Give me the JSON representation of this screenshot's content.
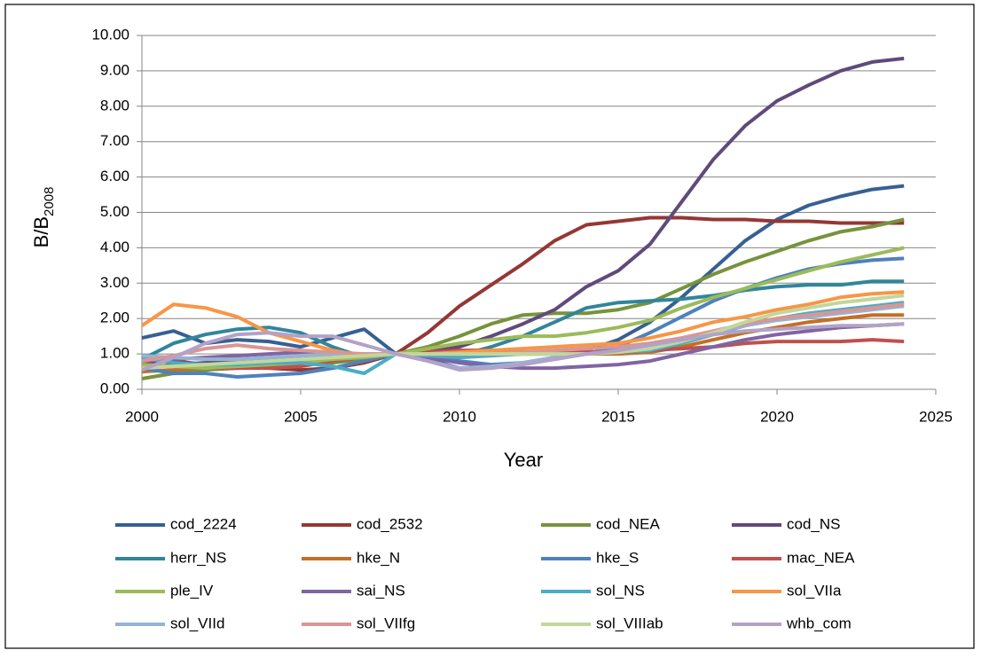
{
  "chart_data": {
    "type": "line",
    "xlabel": "Year",
    "ylabel": "B/B",
    "ylabel_sub": "2008",
    "x": [
      2000,
      2001,
      2002,
      2003,
      2004,
      2005,
      2006,
      2007,
      2008,
      2009,
      2010,
      2011,
      2012,
      2013,
      2014,
      2015,
      2016,
      2017,
      2018,
      2019,
      2020,
      2021,
      2022,
      2023,
      2024
    ],
    "xlim": [
      2000,
      2025
    ],
    "xticks": [
      2000,
      2005,
      2010,
      2015,
      2020,
      2025
    ],
    "ylim": [
      0,
      10
    ],
    "yticks": [
      {
        "value": 0,
        "label": "0.00"
      },
      {
        "value": 1,
        "label": "1.00"
      },
      {
        "value": 2,
        "label": "2.00"
      },
      {
        "value": 3,
        "label": "3.00"
      },
      {
        "value": 4,
        "label": "4.00"
      },
      {
        "value": 5,
        "label": "5.00"
      },
      {
        "value": 6,
        "label": "6.00"
      },
      {
        "value": 7,
        "label": "7.00"
      },
      {
        "value": 8,
        "label": "8.00"
      },
      {
        "value": 9,
        "label": "9.00"
      },
      {
        "value": 10,
        "label": "10.00"
      }
    ],
    "grid": true,
    "legend": "bottom",
    "series": [
      {
        "name": "cod_2224",
        "color": "#376092",
        "values": [
          1.45,
          1.65,
          1.3,
          1.4,
          1.35,
          1.2,
          1.45,
          1.7,
          1.0,
          0.85,
          0.6,
          0.65,
          0.75,
          0.9,
          1.1,
          1.4,
          1.9,
          2.6,
          3.4,
          4.2,
          4.8,
          5.2,
          5.45,
          5.65,
          5.75
        ]
      },
      {
        "name": "cod_2532",
        "color": "#953735",
        "values": [
          0.75,
          0.8,
          0.7,
          0.65,
          0.6,
          0.55,
          0.6,
          0.75,
          1.0,
          1.6,
          2.35,
          2.95,
          3.55,
          4.2,
          4.65,
          4.75,
          4.85,
          4.85,
          4.8,
          4.8,
          4.75,
          4.75,
          4.7,
          4.7,
          4.7
        ]
      },
      {
        "name": "cod_NEA",
        "color": "#77933c",
        "values": [
          0.3,
          0.45,
          0.55,
          0.6,
          0.65,
          0.7,
          0.75,
          0.85,
          1.0,
          1.2,
          1.5,
          1.85,
          2.1,
          2.15,
          2.15,
          2.25,
          2.45,
          2.85,
          3.25,
          3.6,
          3.9,
          4.2,
          4.45,
          4.6,
          4.8
        ]
      },
      {
        "name": "cod_NS",
        "color": "#604a7b",
        "values": [
          0.6,
          0.7,
          0.75,
          0.8,
          0.85,
          0.9,
          0.95,
          0.95,
          1.0,
          1.05,
          1.2,
          1.5,
          1.85,
          2.25,
          2.9,
          3.35,
          4.1,
          5.3,
          6.5,
          7.45,
          8.15,
          8.6,
          9.0,
          9.25,
          9.35
        ]
      },
      {
        "name": "herr_NS",
        "color": "#31859c",
        "values": [
          0.85,
          1.3,
          1.55,
          1.7,
          1.75,
          1.6,
          1.2,
          0.9,
          1.0,
          1.0,
          0.95,
          1.2,
          1.5,
          1.9,
          2.3,
          2.45,
          2.5,
          2.55,
          2.65,
          2.8,
          2.9,
          2.95,
          2.95,
          3.05,
          3.05
        ]
      },
      {
        "name": "hke_N",
        "color": "#c46f26",
        "values": [
          0.5,
          0.55,
          0.6,
          0.65,
          0.7,
          0.75,
          0.85,
          0.95,
          1.0,
          1.0,
          1.0,
          1.0,
          1.0,
          1.0,
          1.0,
          1.0,
          1.05,
          1.2,
          1.4,
          1.6,
          1.75,
          1.9,
          2.0,
          2.1,
          2.1
        ]
      },
      {
        "name": "hke_S",
        "color": "#4f81bd",
        "values": [
          0.6,
          0.45,
          0.45,
          0.35,
          0.4,
          0.45,
          0.6,
          0.8,
          1.0,
          0.95,
          0.8,
          0.7,
          0.75,
          0.85,
          1.0,
          1.2,
          1.6,
          2.05,
          2.5,
          2.85,
          3.15,
          3.4,
          3.55,
          3.65,
          3.7
        ]
      },
      {
        "name": "mac_NEA",
        "color": "#c0504d",
        "values": [
          0.7,
          0.65,
          0.6,
          0.6,
          0.6,
          0.65,
          0.8,
          0.9,
          1.0,
          1.05,
          1.1,
          1.1,
          1.05,
          1.05,
          1.05,
          1.05,
          1.1,
          1.15,
          1.2,
          1.3,
          1.35,
          1.35,
          1.35,
          1.4,
          1.35
        ]
      },
      {
        "name": "ple_IV",
        "color": "#9bbb59",
        "values": [
          0.7,
          0.65,
          0.6,
          0.65,
          0.7,
          0.75,
          0.85,
          0.9,
          1.0,
          1.15,
          1.3,
          1.4,
          1.5,
          1.5,
          1.6,
          1.75,
          1.95,
          2.3,
          2.6,
          2.85,
          3.1,
          3.35,
          3.6,
          3.8,
          4.0
        ]
      },
      {
        "name": "sai_NS",
        "color": "#8064a2",
        "values": [
          0.8,
          0.85,
          0.9,
          0.95,
          1.0,
          1.05,
          1.0,
          0.95,
          1.0,
          0.9,
          0.75,
          0.65,
          0.6,
          0.6,
          0.65,
          0.7,
          0.8,
          1.0,
          1.2,
          1.4,
          1.55,
          1.65,
          1.75,
          1.8,
          1.85
        ]
      },
      {
        "name": "sol_NS",
        "color": "#4bacc6",
        "values": [
          0.9,
          0.75,
          0.7,
          0.7,
          0.75,
          0.75,
          0.65,
          0.45,
          1.0,
          0.95,
          0.9,
          0.95,
          1.0,
          1.0,
          1.0,
          1.05,
          1.1,
          1.3,
          1.55,
          1.8,
          2.0,
          2.15,
          2.25,
          2.35,
          2.45
        ]
      },
      {
        "name": "sol_VIIa",
        "color": "#f79646",
        "values": [
          1.8,
          2.4,
          2.3,
          2.05,
          1.6,
          1.35,
          1.1,
          0.95,
          1.0,
          1.0,
          1.05,
          1.1,
          1.15,
          1.2,
          1.25,
          1.3,
          1.45,
          1.65,
          1.9,
          2.05,
          2.25,
          2.4,
          2.6,
          2.7,
          2.75
        ]
      },
      {
        "name": "sol_VIId",
        "color": "#95b3d7",
        "values": [
          0.95,
          0.9,
          0.85,
          0.85,
          0.9,
          0.95,
          1.0,
          1.0,
          1.0,
          0.8,
          0.6,
          0.65,
          0.75,
          0.9,
          1.0,
          1.05,
          1.15,
          1.35,
          1.6,
          1.8,
          1.95,
          2.05,
          2.15,
          2.25,
          2.35
        ]
      },
      {
        "name": "sol_VIIfg",
        "color": "#d99694",
        "values": [
          0.8,
          0.95,
          1.15,
          1.25,
          1.15,
          1.1,
          1.05,
          1.0,
          1.0,
          1.0,
          1.0,
          1.0,
          1.05,
          1.1,
          1.15,
          1.2,
          1.3,
          1.45,
          1.65,
          1.85,
          2.0,
          2.1,
          2.2,
          2.3,
          2.4
        ]
      },
      {
        "name": "sol_VIIIab",
        "color": "#c3d69b",
        "values": [
          0.6,
          0.65,
          0.7,
          0.75,
          0.8,
          0.85,
          0.9,
          0.95,
          1.0,
          1.0,
          1.0,
          1.0,
          1.0,
          1.0,
          1.0,
          1.05,
          1.15,
          1.35,
          1.6,
          1.9,
          2.15,
          2.3,
          2.45,
          2.55,
          2.65
        ]
      },
      {
        "name": "whb_com",
        "color": "#b3a2c7",
        "values": [
          0.55,
          0.9,
          1.3,
          1.55,
          1.6,
          1.5,
          1.5,
          1.25,
          1.0,
          0.8,
          0.55,
          0.6,
          0.7,
          0.85,
          1.0,
          1.1,
          1.25,
          1.4,
          1.55,
          1.65,
          1.7,
          1.75,
          1.8,
          1.8,
          1.85
        ]
      }
    ]
  }
}
